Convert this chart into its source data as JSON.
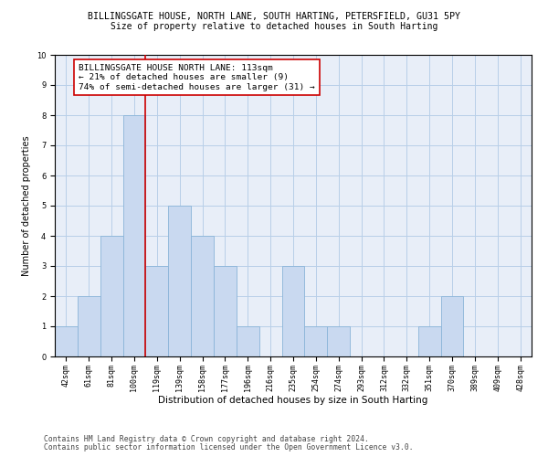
{
  "title_line1": "BILLINGSGATE HOUSE, NORTH LANE, SOUTH HARTING, PETERSFIELD, GU31 5PY",
  "title_line2": "Size of property relative to detached houses in South Harting",
  "xlabel": "Distribution of detached houses by size in South Harting",
  "ylabel": "Number of detached properties",
  "categories": [
    "42sqm",
    "61sqm",
    "81sqm",
    "100sqm",
    "119sqm",
    "139sqm",
    "158sqm",
    "177sqm",
    "196sqm",
    "216sqm",
    "235sqm",
    "254sqm",
    "274sqm",
    "293sqm",
    "312sqm",
    "332sqm",
    "351sqm",
    "370sqm",
    "389sqm",
    "409sqm",
    "428sqm"
  ],
  "values": [
    1,
    2,
    4,
    8,
    3,
    5,
    4,
    3,
    1,
    0,
    3,
    1,
    1,
    0,
    0,
    0,
    1,
    2,
    0,
    0,
    0
  ],
  "bar_color": "#c9d9f0",
  "bar_edge_color": "#8ab4d8",
  "vline_x": 3.5,
  "vline_color": "#cc0000",
  "annotation_text": "BILLINGSGATE HOUSE NORTH LANE: 113sqm\n← 21% of detached houses are smaller (9)\n74% of semi-detached houses are larger (31) →",
  "annotation_box_color": "#ffffff",
  "annotation_box_edge": "#cc0000",
  "ylim": [
    0,
    10
  ],
  "yticks": [
    0,
    1,
    2,
    3,
    4,
    5,
    6,
    7,
    8,
    9,
    10
  ],
  "footer_line1": "Contains HM Land Registry data © Crown copyright and database right 2024.",
  "footer_line2": "Contains public sector information licensed under the Open Government Licence v3.0.",
  "title_fontsize": 7.2,
  "subtitle_fontsize": 7.0,
  "xlabel_fontsize": 7.5,
  "ylabel_fontsize": 7.0,
  "tick_fontsize": 6.0,
  "annotation_fontsize": 6.8,
  "footer_fontsize": 5.8,
  "grid_color": "#b8cfe8",
  "background_color": "#e8eef8"
}
